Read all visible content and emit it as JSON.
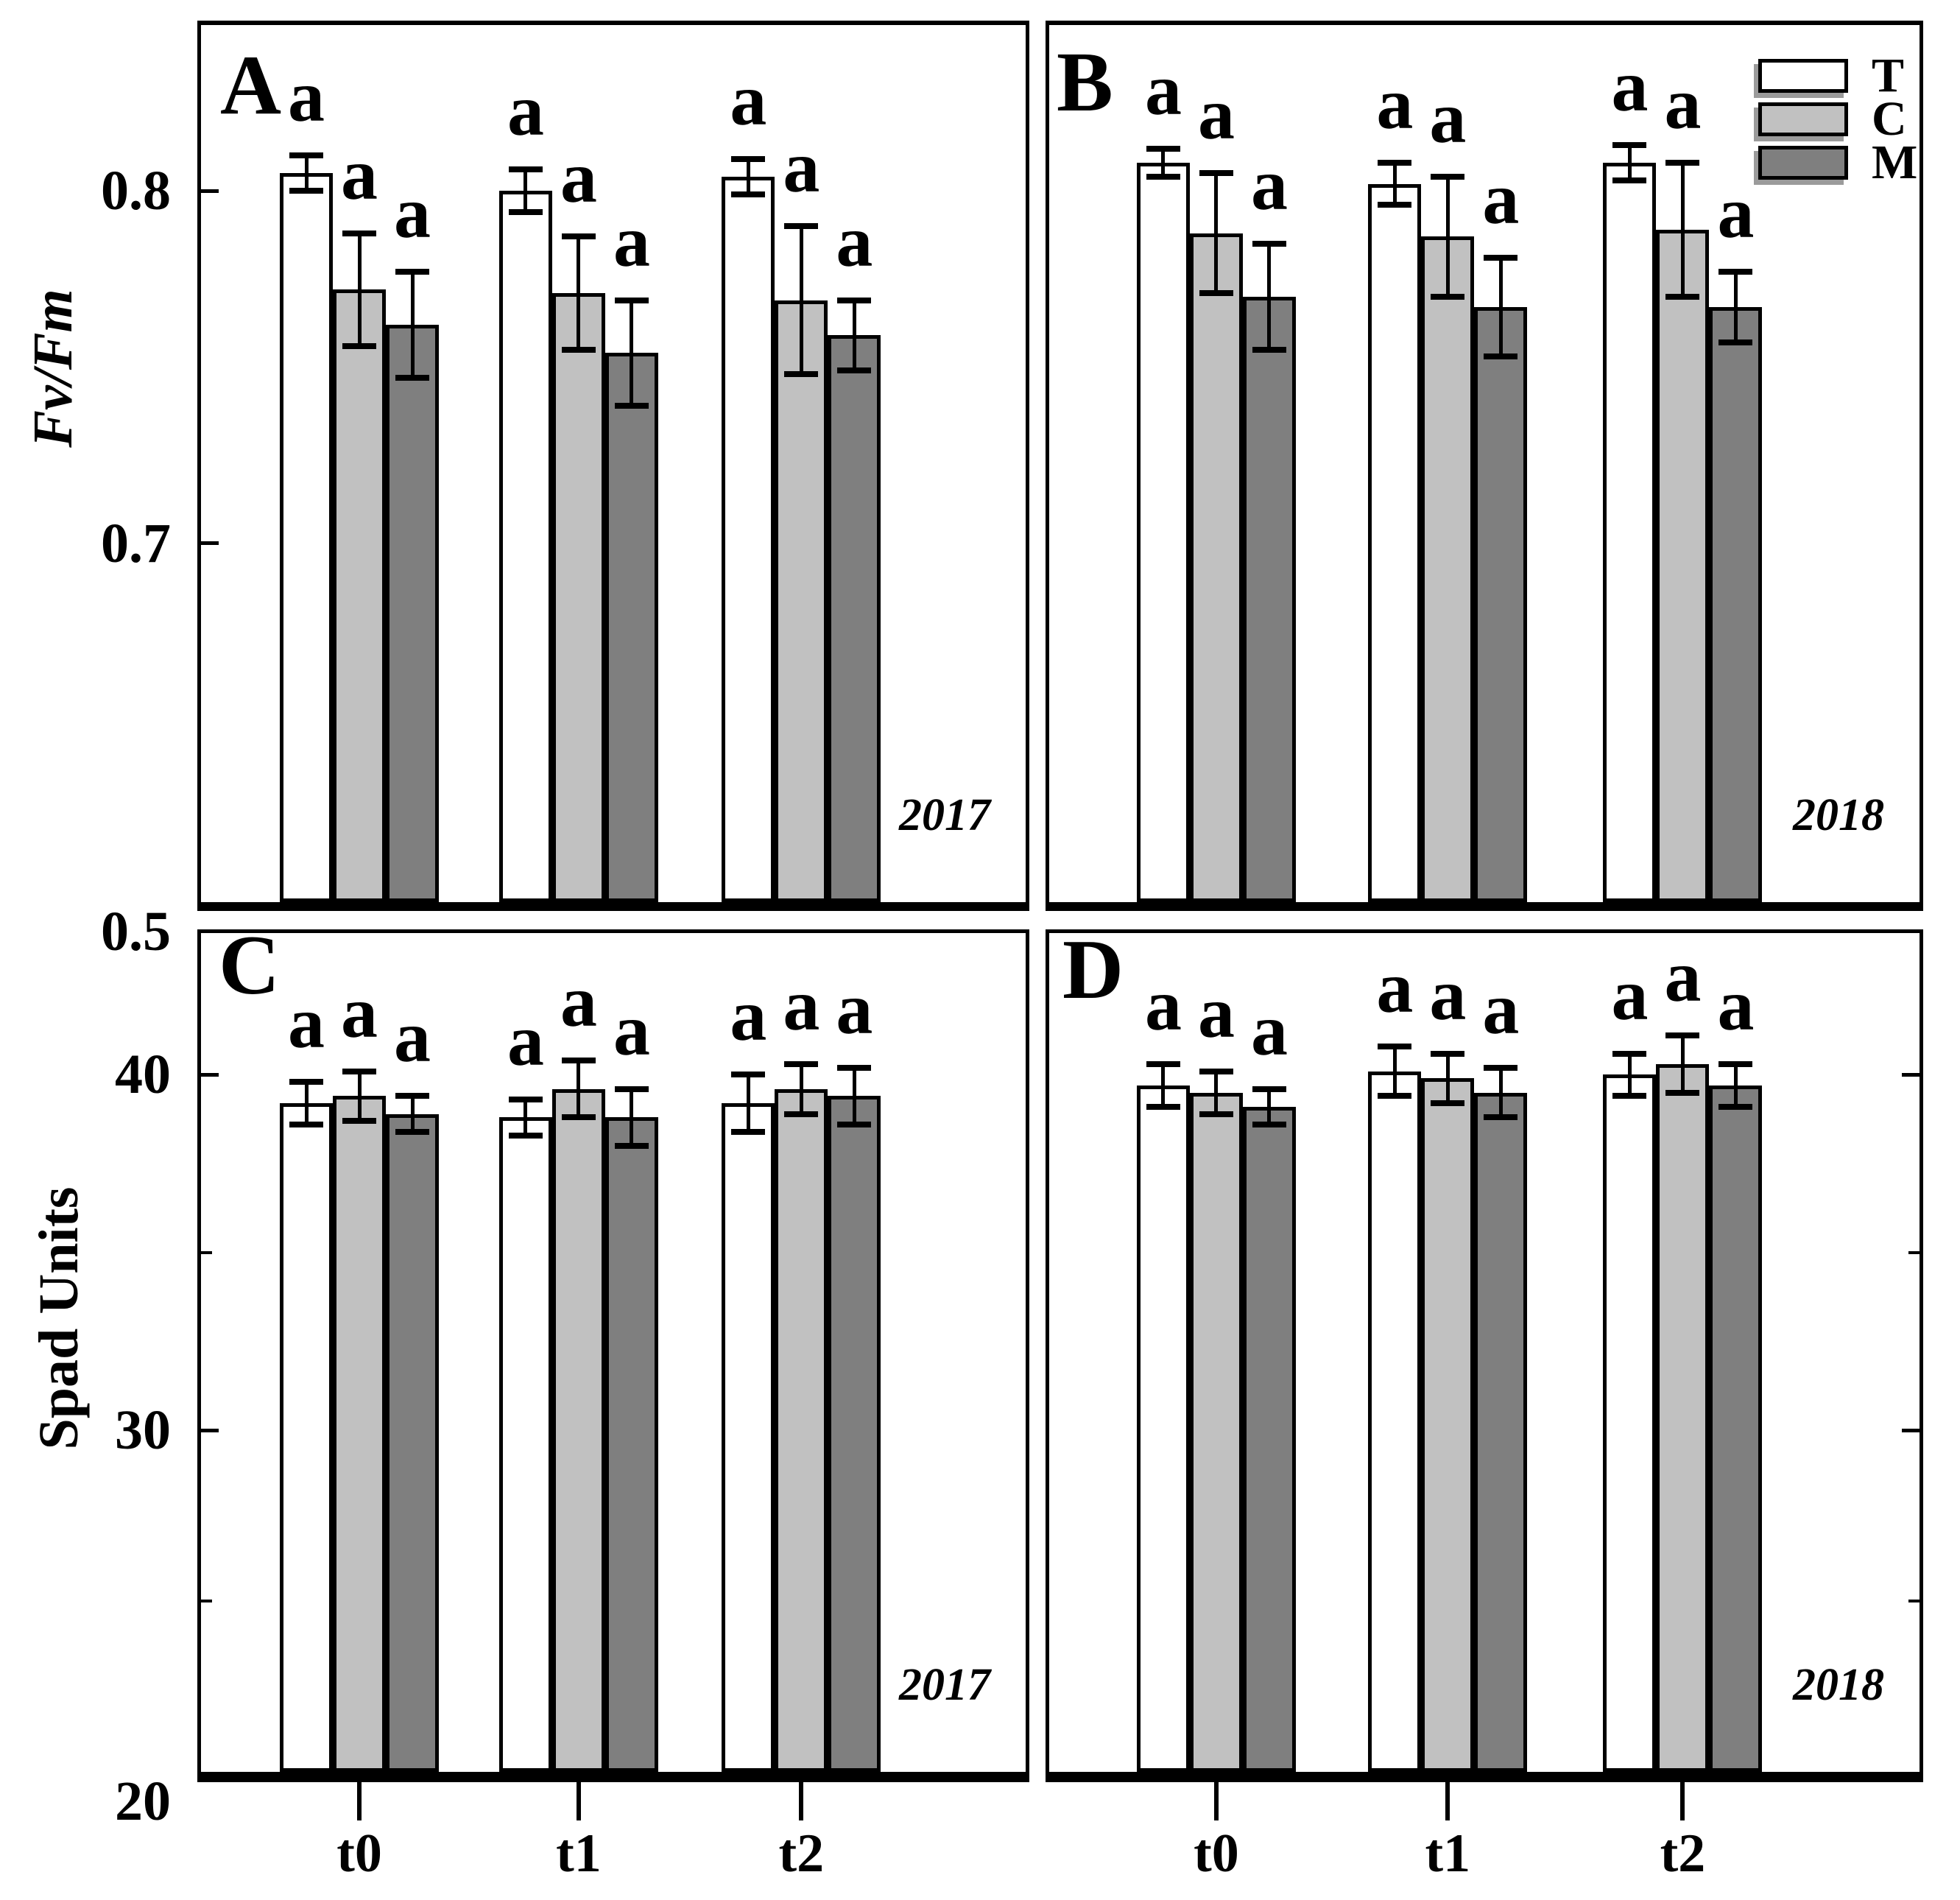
{
  "figure": {
    "background": "#ffffff",
    "series_colors": {
      "T": "#ffffff",
      "C": "#c1c1c1",
      "M": "#7f7f7f"
    },
    "legend": {
      "position": "top-right",
      "items": [
        {
          "label": "T",
          "color": "#ffffff"
        },
        {
          "label": "C",
          "color": "#c1c1c1"
        },
        {
          "label": "M",
          "color": "#7f7f7f"
        }
      ]
    }
  },
  "chart_data": [
    {
      "id": "A",
      "panel_label": "A",
      "type": "bar",
      "year_label": "2017",
      "ylabel": "Fv/Fm",
      "categories": [
        "t0",
        "t1",
        "t2"
      ],
      "show_x_labels": false,
      "y_axis": {
        "ticks_position": "left",
        "ticks": [
          {
            "value": 0.8,
            "label": "0.8",
            "line": true,
            "edge": false
          },
          {
            "value": 0.7,
            "label": "0.7",
            "line": true,
            "edge": false
          },
          {
            "value": 0.5,
            "label": "0.5",
            "line": false,
            "edge": true
          }
        ],
        "minor_ticks": [],
        "scale_anchors": [
          {
            "value": 0.5,
            "frac": 0.0
          },
          {
            "value": 0.7,
            "frac": 0.409
          },
          {
            "value": 0.8,
            "frac": 0.811
          }
        ]
      },
      "series": [
        {
          "name": "T",
          "values": [
            0.805,
            0.8,
            0.804
          ],
          "errors": [
            0.005,
            0.006,
            0.005
          ],
          "sig_labels": [
            "a",
            "a",
            "a"
          ]
        },
        {
          "name": "C",
          "values": [
            0.772,
            0.771,
            0.769
          ],
          "errors": [
            0.016,
            0.016,
            0.021
          ],
          "sig_labels": [
            "a",
            "a",
            "a"
          ]
        },
        {
          "name": "M",
          "values": [
            0.762,
            0.754,
            0.759
          ],
          "errors": [
            0.015,
            0.015,
            0.01
          ],
          "sig_labels": [
            "a",
            "a",
            "a"
          ]
        }
      ]
    },
    {
      "id": "B",
      "panel_label": "B",
      "type": "bar",
      "year_label": "2018",
      "ylabel": "Fv/Fm",
      "categories": [
        "t0",
        "t1",
        "t2"
      ],
      "show_x_labels": false,
      "y_axis": {
        "ticks_position": "none",
        "ticks": [],
        "minor_ticks": [],
        "scale_anchors": [
          {
            "value": 0.5,
            "frac": 0.0
          },
          {
            "value": 0.7,
            "frac": 0.409
          },
          {
            "value": 0.8,
            "frac": 0.811
          }
        ]
      },
      "series": [
        {
          "name": "T",
          "values": [
            0.808,
            0.802,
            0.808
          ],
          "errors": [
            0.004,
            0.006,
            0.005
          ],
          "sig_labels": [
            "a",
            "a",
            "a"
          ]
        },
        {
          "name": "C",
          "values": [
            0.788,
            0.787,
            0.789
          ],
          "errors": [
            0.017,
            0.017,
            0.019
          ],
          "sig_labels": [
            "a",
            "a",
            "a"
          ]
        },
        {
          "name": "M",
          "values": [
            0.77,
            0.767,
            0.767
          ],
          "errors": [
            0.015,
            0.014,
            0.01
          ],
          "sig_labels": [
            "a",
            "a",
            "a"
          ]
        }
      ]
    },
    {
      "id": "C",
      "panel_label": "C",
      "type": "bar",
      "year_label": "2017",
      "ylabel": "Spad Units",
      "categories": [
        "t0",
        "t1",
        "t2"
      ],
      "show_x_labels": true,
      "y_axis": {
        "ticks_position": "left",
        "ticks": [
          {
            "value": 40,
            "label": "40",
            "line": true,
            "edge": false
          },
          {
            "value": 30,
            "label": "30",
            "line": true,
            "edge": false
          },
          {
            "value": 20,
            "label": "20",
            "line": false,
            "edge": true
          }
        ],
        "minor_ticks": [
          35,
          25
        ],
        "scale_anchors": [
          {
            "value": 20,
            "frac": 0.0
          },
          {
            "value": 30,
            "frac": 0.407
          },
          {
            "value": 40,
            "frac": 0.831
          }
        ]
      },
      "series": [
        {
          "name": "T",
          "values": [
            39.2,
            38.8,
            39.2
          ],
          "errors": [
            0.6,
            0.5,
            0.8
          ],
          "sig_labels": [
            "a",
            "a",
            "a"
          ]
        },
        {
          "name": "C",
          "values": [
            39.4,
            39.6,
            39.6
          ],
          "errors": [
            0.7,
            0.8,
            0.7
          ],
          "sig_labels": [
            "a",
            "a",
            "a"
          ]
        },
        {
          "name": "M",
          "values": [
            38.9,
            38.8,
            39.4
          ],
          "errors": [
            0.5,
            0.8,
            0.8
          ],
          "sig_labels": [
            "a",
            "a",
            "a"
          ]
        }
      ]
    },
    {
      "id": "D",
      "panel_label": "D",
      "type": "bar",
      "year_label": "2018",
      "ylabel": "Spad Units",
      "categories": [
        "t0",
        "t1",
        "t2"
      ],
      "show_x_labels": true,
      "y_axis": {
        "ticks_position": "right",
        "ticks": [
          {
            "value": 40,
            "label": "",
            "line": true,
            "edge": false
          },
          {
            "value": 30,
            "label": "",
            "line": true,
            "edge": false
          }
        ],
        "minor_ticks": [
          35,
          25
        ],
        "scale_anchors": [
          {
            "value": 20,
            "frac": 0.0
          },
          {
            "value": 30,
            "frac": 0.407
          },
          {
            "value": 40,
            "frac": 0.831
          }
        ]
      },
      "series": [
        {
          "name": "T",
          "values": [
            39.7,
            40.1,
            40.0
          ],
          "errors": [
            0.6,
            0.7,
            0.6
          ],
          "sig_labels": [
            "a",
            "a",
            "a"
          ]
        },
        {
          "name": "C",
          "values": [
            39.5,
            39.9,
            40.3
          ],
          "errors": [
            0.6,
            0.7,
            0.8
          ],
          "sig_labels": [
            "a",
            "a",
            "a"
          ]
        },
        {
          "name": "M",
          "values": [
            39.1,
            39.5,
            39.7
          ],
          "errors": [
            0.5,
            0.7,
            0.6
          ],
          "sig_labels": [
            "a",
            "a",
            "a"
          ]
        }
      ]
    }
  ]
}
